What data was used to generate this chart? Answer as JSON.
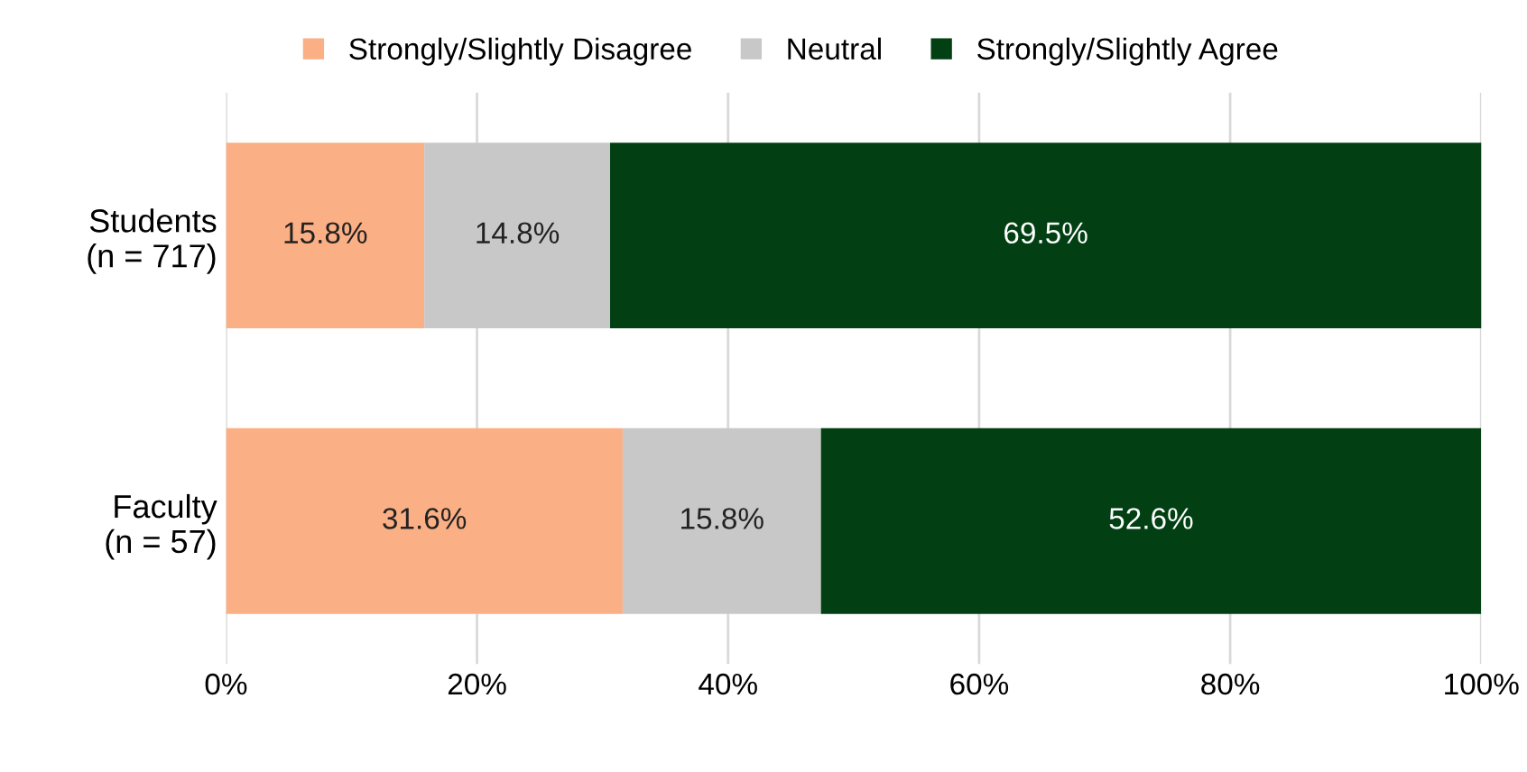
{
  "chart_data": {
    "type": "bar",
    "orientation": "horizontal",
    "stacked": true,
    "categories": [
      "Students\n(n = 717)",
      "Faculty\n(n = 57)"
    ],
    "series": [
      {
        "name": "Strongly/Slightly Disagree",
        "color": "#fbaf85",
        "values": [
          15.8,
          31.6
        ],
        "value_labels": [
          "15.8%",
          "31.6%"
        ]
      },
      {
        "name": "Neutral",
        "color": "#c8c8c8",
        "values": [
          14.8,
          15.8
        ],
        "value_labels": [
          "14.8%",
          "15.8%"
        ]
      },
      {
        "name": "Strongly/Slightly Agree",
        "color": "#024013",
        "values": [
          69.5,
          52.6
        ],
        "value_labels": [
          "69.5%",
          "52.6%"
        ]
      }
    ],
    "xlim": [
      0,
      100
    ],
    "xticks": [
      {
        "value": 0,
        "label": "0%"
      },
      {
        "value": 20,
        "label": "20%"
      },
      {
        "value": 40,
        "label": "40%"
      },
      {
        "value": 60,
        "label": "60%"
      },
      {
        "value": 80,
        "label": "80%"
      },
      {
        "value": 100,
        "label": "100%"
      }
    ],
    "grid": "x",
    "legend": "top"
  }
}
